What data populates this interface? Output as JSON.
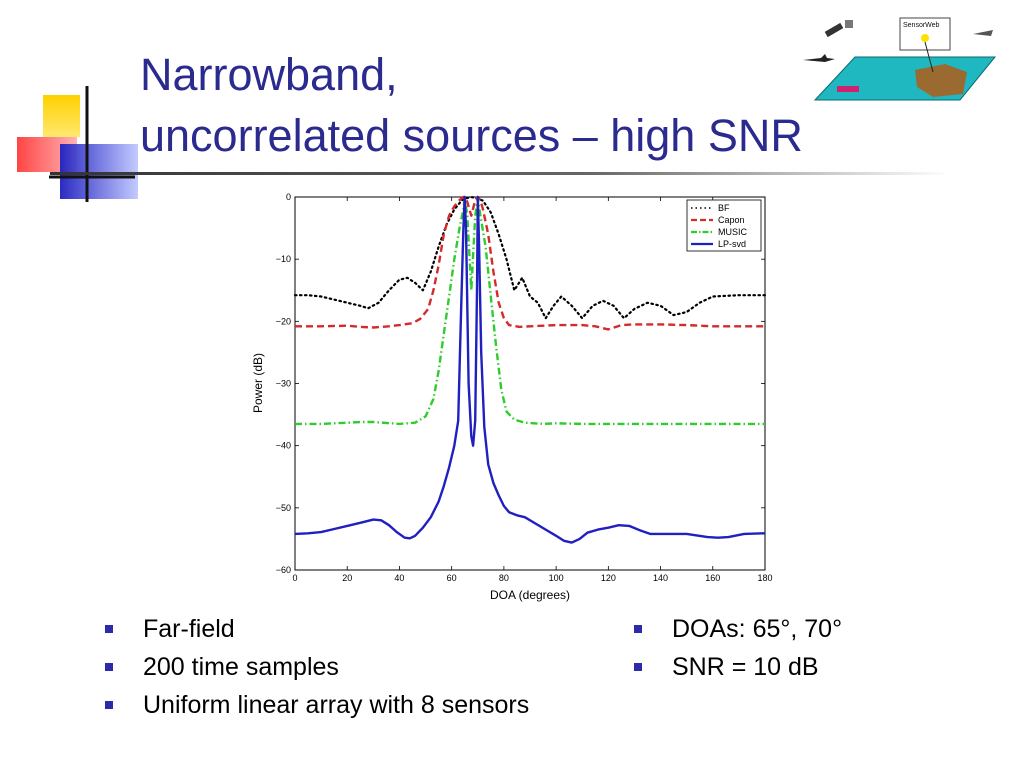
{
  "slide": {
    "title_line1": "Narrowband,",
    "title_line2": "uncorrelated sources – high SNR",
    "corner_graphic_label": "SensorWeb"
  },
  "bullets_left": [
    "Far-field",
    "200 time samples",
    "Uniform linear array with 8 sensors"
  ],
  "bullets_right": [
    "DOAs: 65°, 70°",
    "SNR = 10 dB"
  ],
  "chart_data": {
    "type": "line",
    "title": "",
    "xlabel": "DOA (degrees)",
    "ylabel": "Power (dB)",
    "xlim": [
      0,
      180
    ],
    "ylim": [
      -60,
      0
    ],
    "xticks": [
      0,
      20,
      40,
      60,
      80,
      100,
      120,
      140,
      160,
      180
    ],
    "yticks": [
      0,
      -10,
      -20,
      -30,
      -40,
      -50,
      -60
    ],
    "grid": false,
    "legend_position": "top-right",
    "series": [
      {
        "name": "BF",
        "color": "#000000",
        "style": "dotted",
        "points": [
          [
            0,
            -15.8
          ],
          [
            5,
            -15.8
          ],
          [
            10,
            -16
          ],
          [
            15,
            -16.5
          ],
          [
            20,
            -17
          ],
          [
            25,
            -17.5
          ],
          [
            28,
            -17.9
          ],
          [
            32,
            -17
          ],
          [
            36,
            -15
          ],
          [
            40,
            -13.3
          ],
          [
            43,
            -13
          ],
          [
            46,
            -13.8
          ],
          [
            49,
            -15
          ],
          [
            52,
            -12
          ],
          [
            55,
            -8
          ],
          [
            58,
            -4.5
          ],
          [
            61,
            -2
          ],
          [
            64,
            -0.5
          ],
          [
            67,
            0
          ],
          [
            69,
            -0.1
          ],
          [
            72,
            -0.6
          ],
          [
            75,
            -2.5
          ],
          [
            78,
            -6
          ],
          [
            81,
            -10
          ],
          [
            84,
            -15
          ],
          [
            87,
            -13
          ],
          [
            90,
            -16
          ],
          [
            93,
            -17
          ],
          [
            96,
            -19.5
          ],
          [
            99,
            -17.5
          ],
          [
            102,
            -16
          ],
          [
            106,
            -17.5
          ],
          [
            110,
            -19.5
          ],
          [
            114,
            -17.5
          ],
          [
            118,
            -16.7
          ],
          [
            122,
            -17.5
          ],
          [
            126,
            -19.5
          ],
          [
            130,
            -18
          ],
          [
            135,
            -17
          ],
          [
            140,
            -17.5
          ],
          [
            145,
            -19
          ],
          [
            150,
            -18.5
          ],
          [
            155,
            -17
          ],
          [
            160,
            -16
          ],
          [
            170,
            -15.8
          ],
          [
            180,
            -15.8
          ]
        ]
      },
      {
        "name": "Capon",
        "color": "#d42a2a",
        "style": "dashed",
        "points": [
          [
            0,
            -20.8
          ],
          [
            10,
            -20.8
          ],
          [
            20,
            -20.7
          ],
          [
            25,
            -20.9
          ],
          [
            30,
            -21
          ],
          [
            36,
            -20.8
          ],
          [
            40,
            -20.6
          ],
          [
            45,
            -20.3
          ],
          [
            48,
            -19.6
          ],
          [
            51,
            -18
          ],
          [
            53,
            -15
          ],
          [
            55,
            -11
          ],
          [
            57,
            -6
          ],
          [
            59,
            -3
          ],
          [
            61,
            -1.5
          ],
          [
            63,
            -0.5
          ],
          [
            64.5,
            0
          ],
          [
            65,
            0
          ],
          [
            66,
            -0.8
          ],
          [
            67.5,
            -3
          ],
          [
            69,
            -0.5
          ],
          [
            70,
            0
          ],
          [
            71,
            -0.5
          ],
          [
            72,
            -2
          ],
          [
            74,
            -6
          ],
          [
            76,
            -12
          ],
          [
            78,
            -17
          ],
          [
            80,
            -19.5
          ],
          [
            82,
            -20.6
          ],
          [
            86,
            -20.9
          ],
          [
            90,
            -20.8
          ],
          [
            95,
            -20.7
          ],
          [
            100,
            -20.6
          ],
          [
            110,
            -20.6
          ],
          [
            115,
            -20.8
          ],
          [
            120,
            -21.3
          ],
          [
            125,
            -20.6
          ],
          [
            130,
            -20.5
          ],
          [
            140,
            -20.5
          ],
          [
            150,
            -20.6
          ],
          [
            160,
            -20.8
          ],
          [
            170,
            -20.8
          ],
          [
            180,
            -20.8
          ]
        ]
      },
      {
        "name": "MUSIC",
        "color": "#2ecc2e",
        "style": "dashdot",
        "points": [
          [
            0,
            -36.5
          ],
          [
            10,
            -36.5
          ],
          [
            20,
            -36.3
          ],
          [
            25,
            -36.2
          ],
          [
            30,
            -36.2
          ],
          [
            40,
            -36.5
          ],
          [
            46,
            -36.3
          ],
          [
            50,
            -35.3
          ],
          [
            53,
            -32.5
          ],
          [
            55,
            -28
          ],
          [
            57,
            -22
          ],
          [
            59,
            -16
          ],
          [
            61,
            -10
          ],
          [
            63,
            -5
          ],
          [
            64.5,
            -2
          ],
          [
            65,
            -0.2
          ],
          [
            66,
            -3
          ],
          [
            67.5,
            -15
          ],
          [
            69,
            -3
          ],
          [
            70,
            -0.2
          ],
          [
            71,
            -3
          ],
          [
            73,
            -8
          ],
          [
            75,
            -16
          ],
          [
            77,
            -24
          ],
          [
            79,
            -31
          ],
          [
            81,
            -34.5
          ],
          [
            84,
            -35.8
          ],
          [
            88,
            -36.3
          ],
          [
            95,
            -36.5
          ],
          [
            100,
            -36.4
          ],
          [
            110,
            -36.5
          ],
          [
            120,
            -36.5
          ],
          [
            130,
            -36.5
          ],
          [
            140,
            -36.5
          ],
          [
            150,
            -36.5
          ],
          [
            160,
            -36.5
          ],
          [
            170,
            -36.5
          ],
          [
            180,
            -36.5
          ]
        ]
      },
      {
        "name": "LP-svd",
        "color": "#2020c0",
        "style": "solid",
        "points": [
          [
            0,
            -54.2
          ],
          [
            5,
            -54.1
          ],
          [
            10,
            -53.9
          ],
          [
            15,
            -53.4
          ],
          [
            20,
            -52.9
          ],
          [
            25,
            -52.4
          ],
          [
            30,
            -51.9
          ],
          [
            33,
            -52
          ],
          [
            36,
            -52.8
          ],
          [
            39,
            -53.9
          ],
          [
            42,
            -54.8
          ],
          [
            44,
            -54.9
          ],
          [
            46,
            -54.5
          ],
          [
            49,
            -53.2
          ],
          [
            52,
            -51.5
          ],
          [
            55,
            -49
          ],
          [
            57,
            -46.5
          ],
          [
            59,
            -43.5
          ],
          [
            61,
            -40
          ],
          [
            62.5,
            -36
          ],
          [
            63.5,
            -20
          ],
          [
            64.5,
            -5
          ],
          [
            65,
            0
          ],
          [
            65.5,
            -5
          ],
          [
            66.5,
            -30
          ],
          [
            67.5,
            -38.5
          ],
          [
            68.2,
            -40
          ],
          [
            69,
            -36
          ],
          [
            69.7,
            -15
          ],
          [
            70,
            0
          ],
          [
            70.5,
            -8
          ],
          [
            71.3,
            -25
          ],
          [
            72.5,
            -37
          ],
          [
            74,
            -43
          ],
          [
            76,
            -46
          ],
          [
            78,
            -48
          ],
          [
            80,
            -49.7
          ],
          [
            82,
            -50.7
          ],
          [
            85,
            -51.2
          ],
          [
            88,
            -51.5
          ],
          [
            92,
            -52.5
          ],
          [
            96,
            -53.5
          ],
          [
            100,
            -54.5
          ],
          [
            103,
            -55.3
          ],
          [
            106,
            -55.6
          ],
          [
            109,
            -55
          ],
          [
            112,
            -54
          ],
          [
            116,
            -53.5
          ],
          [
            120,
            -53.2
          ],
          [
            124,
            -52.8
          ],
          [
            128,
            -52.9
          ],
          [
            132,
            -53.6
          ],
          [
            136,
            -54.2
          ],
          [
            142,
            -54.2
          ],
          [
            150,
            -54.2
          ],
          [
            158,
            -54.7
          ],
          [
            162,
            -54.8
          ],
          [
            166,
            -54.7
          ],
          [
            172,
            -54.2
          ],
          [
            180,
            -54.1
          ]
        ]
      }
    ]
  }
}
